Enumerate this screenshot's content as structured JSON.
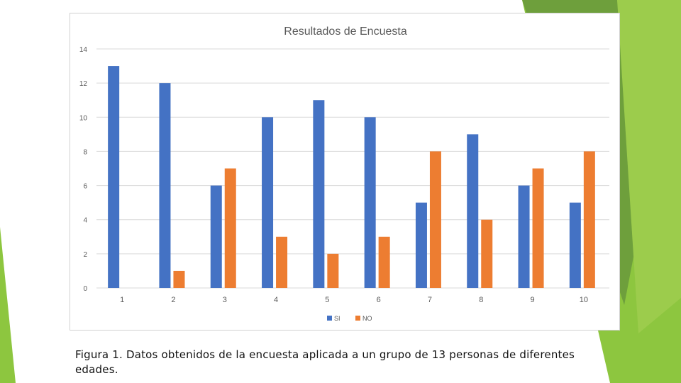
{
  "caption": "Figura 1. Datos obtenidos de la encuesta aplicada a un grupo de 13 personas de diferentes edades.",
  "colors": {
    "accent_green": "#8dc63f",
    "dark_green": "#5a8f2a",
    "series_si": "#4472c4",
    "series_no": "#ed7d31"
  },
  "chart_data": {
    "type": "bar",
    "title": "Resultados de Encuesta",
    "xlabel": "",
    "ylabel": "",
    "categories": [
      "1",
      "2",
      "3",
      "4",
      "5",
      "6",
      "7",
      "8",
      "9",
      "10"
    ],
    "series": [
      {
        "name": "SI",
        "color": "#4472c4",
        "values": [
          13,
          12,
          6,
          10,
          11,
          10,
          5,
          9,
          6,
          5
        ]
      },
      {
        "name": "NO",
        "color": "#ed7d31",
        "values": [
          0,
          1,
          7,
          3,
          2,
          3,
          8,
          4,
          7,
          8
        ]
      }
    ],
    "ylim": [
      0,
      14
    ],
    "yticks": [
      "0",
      "2",
      "4",
      "6",
      "8",
      "10",
      "12",
      "14"
    ],
    "grid": true,
    "legend": "bottom"
  }
}
